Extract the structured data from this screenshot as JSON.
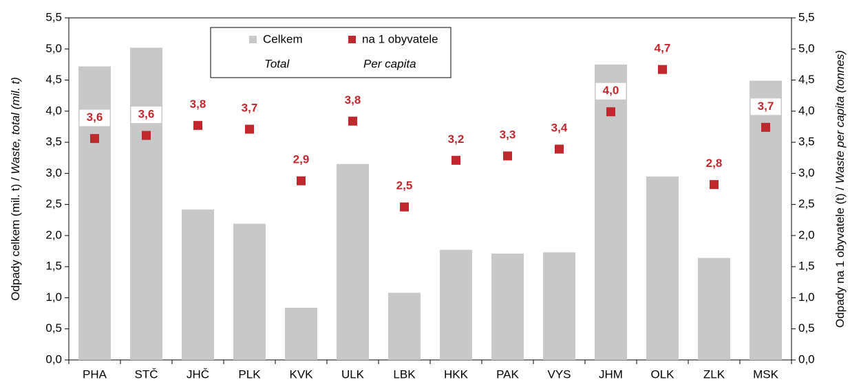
{
  "chart_data": {
    "type": "bar",
    "categories": [
      "PHA",
      "STČ",
      "JHČ",
      "PLK",
      "KVK",
      "ULK",
      "LBK",
      "HKK",
      "PAK",
      "VYS",
      "JHM",
      "OLK",
      "ZLK",
      "MSK"
    ],
    "series": [
      {
        "name": "Celkem",
        "type": "bar",
        "color": "#c8c8c8",
        "values": [
          4.72,
          5.02,
          2.42,
          2.19,
          0.84,
          3.15,
          1.08,
          1.77,
          1.71,
          1.73,
          4.75,
          2.95,
          1.64,
          4.49
        ]
      },
      {
        "name": "na 1 obyvatele",
        "type": "scatter",
        "axis": "y2",
        "color": "#c0282d",
        "values": [
          3.56,
          3.61,
          3.77,
          3.71,
          2.88,
          3.84,
          2.46,
          3.21,
          3.28,
          3.39,
          3.99,
          4.67,
          2.82,
          3.74
        ],
        "value_labels": [
          "3,6",
          "3,6",
          "3,8",
          "3,7",
          "2,9",
          "3,8",
          "2,5",
          "3,2",
          "3,3",
          "3,4",
          "4,0",
          "4,7",
          "2,8",
          "3,7"
        ]
      }
    ],
    "legend_subtitles": [
      "Total",
      "Per capita"
    ],
    "ylabel": [
      "Odpady celkem (mil. t) / ",
      "Waste, total (mil. t)"
    ],
    "y2label": [
      "Odpady na 1 obyvatele (t) / ",
      "Waste per capita (tonnes)"
    ],
    "ylim": [
      0,
      5.5
    ],
    "yticks": [
      {
        "value": 0,
        "label": "0,0"
      },
      {
        "value": 0.5,
        "label": "0,5"
      },
      {
        "value": 1,
        "label": "1,0"
      },
      {
        "value": 1.5,
        "label": "1,5"
      },
      {
        "value": 2,
        "label": "2,0"
      },
      {
        "value": 2.5,
        "label": "2,5"
      },
      {
        "value": 3,
        "label": "3,0"
      },
      {
        "value": 3.5,
        "label": "3,5"
      },
      {
        "value": 4,
        "label": "4,0"
      },
      {
        "value": 4.5,
        "label": "4,5"
      },
      {
        "value": 5,
        "label": "5,0"
      },
      {
        "value": 5.5,
        "label": "5,5"
      }
    ],
    "y2lim": [
      0,
      5.5
    ],
    "y2ticks": [
      {
        "value": 0,
        "label": "0,0"
      },
      {
        "value": 0.5,
        "label": "0,5"
      },
      {
        "value": 1,
        "label": "1,0"
      },
      {
        "value": 1.5,
        "label": "1,5"
      },
      {
        "value": 2,
        "label": "2,0"
      },
      {
        "value": 2.5,
        "label": "2,5"
      },
      {
        "value": 3,
        "label": "3,0"
      },
      {
        "value": 3.5,
        "label": "3,5"
      },
      {
        "value": 4,
        "label": "4,0"
      },
      {
        "value": 4.5,
        "label": "4,5"
      },
      {
        "value": 5,
        "label": "5,0"
      },
      {
        "value": 5.5,
        "label": "5,5"
      }
    ],
    "grid": false
  }
}
